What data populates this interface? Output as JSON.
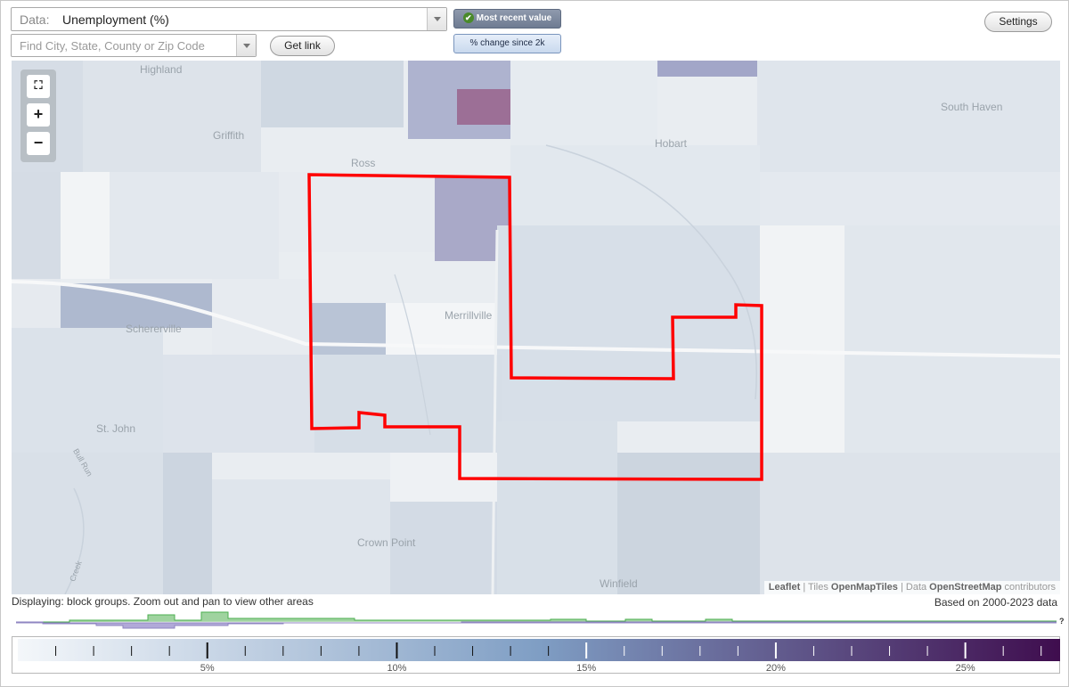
{
  "data_select": {
    "label": "Data:",
    "value": "Unemployment (%)"
  },
  "search": {
    "placeholder": "Find City, State, County or Zip Code"
  },
  "buttons": {
    "get_link": "Get link",
    "settings": "Settings"
  },
  "toggles": {
    "most_recent": "Most recent value",
    "pct_change": "% change since 2k"
  },
  "places": {
    "highland": "Highland",
    "griffith": "Griffith",
    "ross": "Ross",
    "hobart": "Hobart",
    "south_haven": "South Haven",
    "schererville": "Schererville",
    "merrillville": "Merrillville",
    "st_john": "St. John",
    "crown_point": "Crown Point",
    "winfield": "Winfield",
    "bull_run": "Bull Run",
    "creek": "Creek"
  },
  "attribution": {
    "leaflet": "Leaflet",
    "sep1": " | Tiles ",
    "tiles": "OpenMapTiles",
    "sep2": " | Data ",
    "data": "OpenStreetMap",
    "contrib": " contributors"
  },
  "status": {
    "displaying": "Displaying: block groups. Zoom out and pan to view other areas",
    "based_on": "Based on 2000-2023 data",
    "question": "?"
  },
  "legend": {
    "ticks": [
      "5%",
      "10%",
      "15%",
      "20%",
      "25%"
    ],
    "tick_values": [
      5,
      10,
      15,
      20,
      25
    ],
    "min": 0,
    "max": 27.5,
    "color_low": "#f4f7fa",
    "color_mid": "#7f9ec4",
    "color_high": "#3f0d4e"
  },
  "colors": {
    "highlight_outline": "#ff0000",
    "histogram_green": "#4caf50",
    "histogram_purple": "#8f86c2"
  }
}
